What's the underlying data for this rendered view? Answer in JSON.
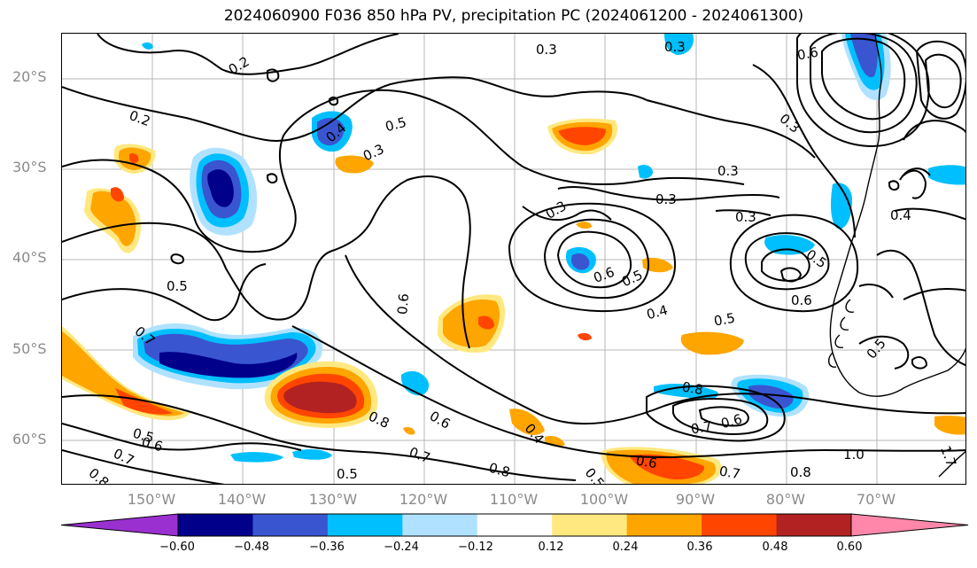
{
  "title": "2024060900 F036 850 hPa PV, precipitation PC (2024061200 - 2024061300)",
  "lat_labels": [
    "20°S",
    "30°S",
    "40°S",
    "50°S",
    "60°S"
  ],
  "lon_labels": [
    "150°W",
    "140°W",
    "130°W",
    "120°W",
    "110°W",
    "100°W",
    "90°W",
    "80°W",
    "70°W"
  ],
  "colorbar": {
    "ticks": [
      "−0.60",
      "−0.48",
      "−0.36",
      "−0.24",
      "−0.12",
      "0.12",
      "0.24",
      "0.36",
      "0.48",
      "0.60"
    ],
    "colors": [
      "#9b30d0",
      "#00008b",
      "#3a55d0",
      "#00bfff",
      "#b0e2ff",
      "#ffffff",
      "#ffe880",
      "#ffa500",
      "#ff4500",
      "#b22222",
      "#ff88aa"
    ]
  },
  "contour_labels": [
    "0.2",
    "0.2",
    "0.3",
    "0.3",
    "0.3",
    "0.3",
    "0.3",
    "0.3",
    "0.3",
    "0.3",
    "0.4",
    "0.4",
    "0.4",
    "0.5",
    "0.5",
    "0.5",
    "0.5",
    "0.5",
    "0.5",
    "0.5",
    "0.5",
    "0.5",
    "0.6",
    "0.6",
    "0.6",
    "0.6",
    "0.6",
    "0.6",
    "0.6",
    "0.6",
    "0.7",
    "0.7",
    "0.7",
    "0.7",
    "0.7",
    "0.8",
    "0.8",
    "0.8",
    "0.8",
    "0.8",
    "1.0",
    "1.7",
    "0.4"
  ]
}
